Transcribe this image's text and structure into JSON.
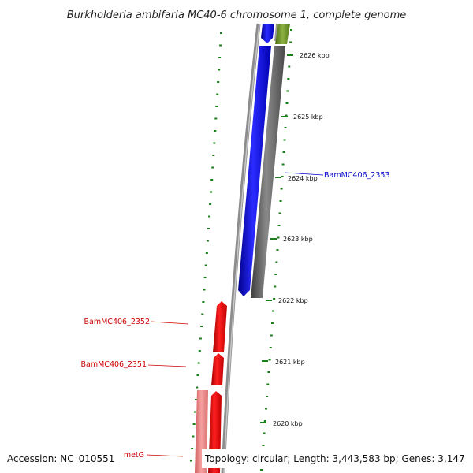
{
  "title": "Burkholderia ambifaria MC40-6 chromosome 1, complete genome",
  "footer": {
    "accession": "Accession: NC_010551",
    "topology": "Topology: circular; Length: 3,443,583 bp; Genes: 3,147"
  },
  "scale": {
    "unit": "kbp",
    "ticks": [
      {
        "value": 2626,
        "label": "2626 kbp"
      },
      {
        "value": 2625,
        "label": "2625 kbp"
      },
      {
        "value": 2624,
        "label": "2624 kbp"
      },
      {
        "value": 2623,
        "label": "2623 kbp"
      },
      {
        "value": 2622,
        "label": "2622 kbp"
      },
      {
        "value": 2621,
        "label": "2621 kbp"
      },
      {
        "value": 2620,
        "label": "2620 kbp"
      }
    ]
  },
  "genes": [
    {
      "name": "BamMC406_2353",
      "strand": "+",
      "color": "#0000ee"
    },
    {
      "name": "BamMC406_2352",
      "strand": "-",
      "color": "#dd0000"
    },
    {
      "name": "BamMC406_2351",
      "strand": "-",
      "color": "#dd0000"
    },
    {
      "name": "metG",
      "strand": "-",
      "color": "#dd0000"
    }
  ],
  "colors": {
    "plus_strand_gene": "#0000ee",
    "minus_strand_gene": "#ee0000",
    "pseudo_light_red": "#f08080",
    "olive_feature": "#6b8e23",
    "backbone": "#888888",
    "tick": "#1a7f1a"
  }
}
